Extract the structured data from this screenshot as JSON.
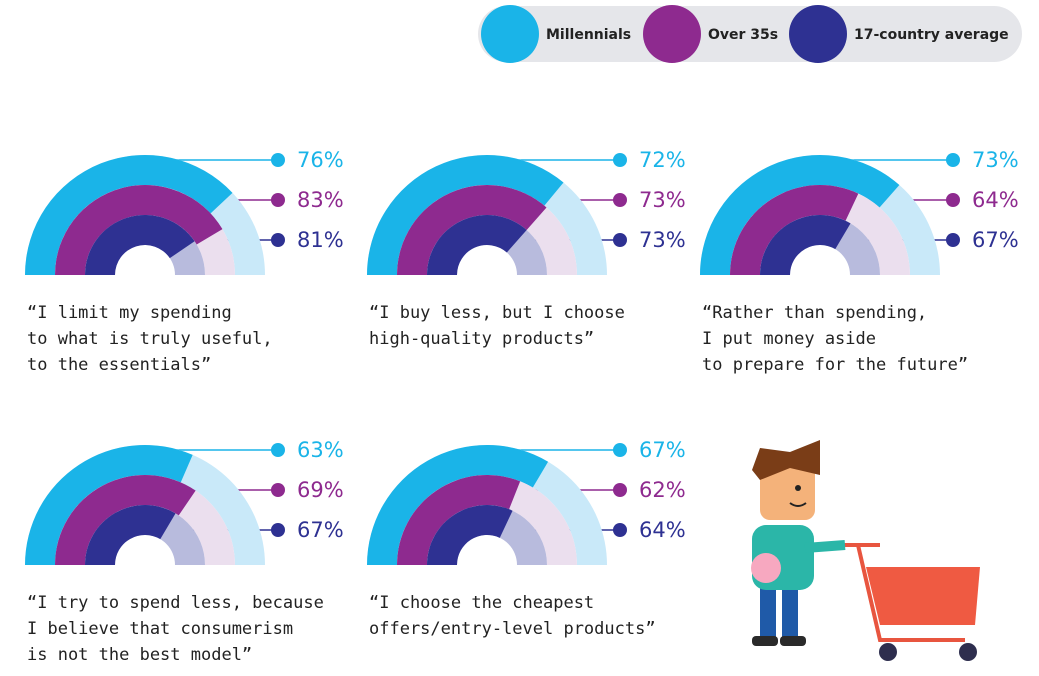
{
  "legend": [
    {
      "name": "Millennials",
      "color": "#1ab4e8",
      "light": "#c9e9f9"
    },
    {
      "name": "Over 35s",
      "color": "#8e2a8f",
      "light": "#ebdfee"
    },
    {
      "name": "17-country average",
      "color": "#2e3192",
      "light": "#b8bbdd"
    }
  ],
  "chart_data": [
    {
      "type": "gauge",
      "title": [
        "“I limit my spending",
        "to what is truly useful,",
        "to the essentials”"
      ],
      "values": [
        76,
        83,
        81
      ],
      "value_labels": [
        "76%",
        "83%",
        "81%"
      ],
      "ylim": [
        0,
        100
      ]
    },
    {
      "type": "gauge",
      "title": [
        "“I buy less, but I choose",
        "high-quality products”"
      ],
      "values": [
        72,
        73,
        73
      ],
      "value_labels": [
        "72%",
        "73%",
        "73%"
      ],
      "ylim": [
        0,
        100
      ]
    },
    {
      "type": "gauge",
      "title": [
        "“Rather than spending,",
        "I put money aside",
        "to prepare for the future”"
      ],
      "values": [
        73,
        64,
        67
      ],
      "value_labels": [
        "73%",
        "64%",
        "67%"
      ],
      "ylim": [
        0,
        100
      ]
    },
    {
      "type": "gauge",
      "title": [
        "“I try to spend less, because",
        "I believe that consumerism",
        "is not the best model”"
      ],
      "values": [
        63,
        69,
        67
      ],
      "value_labels": [
        "63%",
        "69%",
        "67%"
      ],
      "ylim": [
        0,
        100
      ]
    },
    {
      "type": "gauge",
      "title": [
        "“I choose the cheapest",
        "offers/entry-level products”"
      ],
      "values": [
        67,
        62,
        64
      ],
      "value_labels": [
        "67%",
        "62%",
        "64%"
      ],
      "ylim": [
        0,
        100
      ]
    }
  ]
}
